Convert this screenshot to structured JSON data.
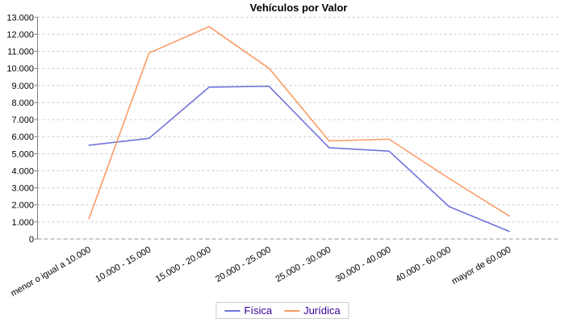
{
  "chart_data": {
    "type": "line",
    "title": "Vehículos por Valor",
    "categories": [
      "menor o igual a 10.000",
      "10.000 - 15.000",
      "15.000 - 20.000",
      "20.000 - 25.000",
      "25.000 - 30.000",
      "30.000 - 40.000",
      "40.000 - 60.000",
      "mayor de 60.000"
    ],
    "series": [
      {
        "name": "Física",
        "color": "#7173DB",
        "values": [
          5500,
          5900,
          8900,
          8950,
          5350,
          5150,
          1900,
          450
        ]
      },
      {
        "name": "Jurídica",
        "color": "#FA9C64",
        "values": [
          1200,
          10900,
          12450,
          10000,
          5750,
          5850,
          3550,
          1350
        ]
      }
    ],
    "xlabel": "",
    "ylabel": "",
    "ylim": [
      0,
      13000
    ],
    "y_tick_step": 1000,
    "y_tick_labels": [
      "0",
      "1.000",
      "2.000",
      "3.000",
      "4.000",
      "5.000",
      "6.000",
      "7.000",
      "8.000",
      "9.000",
      "10.000",
      "11.000",
      "12.000",
      "13.000"
    ],
    "grid": "horizontal-dashed",
    "legend_position": "bottom-center",
    "colors": {
      "background": "#FFFFFF",
      "grid": "#CCCCCC",
      "baseline": "#999999",
      "axis": "#808080",
      "tick_text": "#000000",
      "title_text": "#000000",
      "legend_text": "#330099",
      "legend_border": "#CCCCCC"
    }
  }
}
